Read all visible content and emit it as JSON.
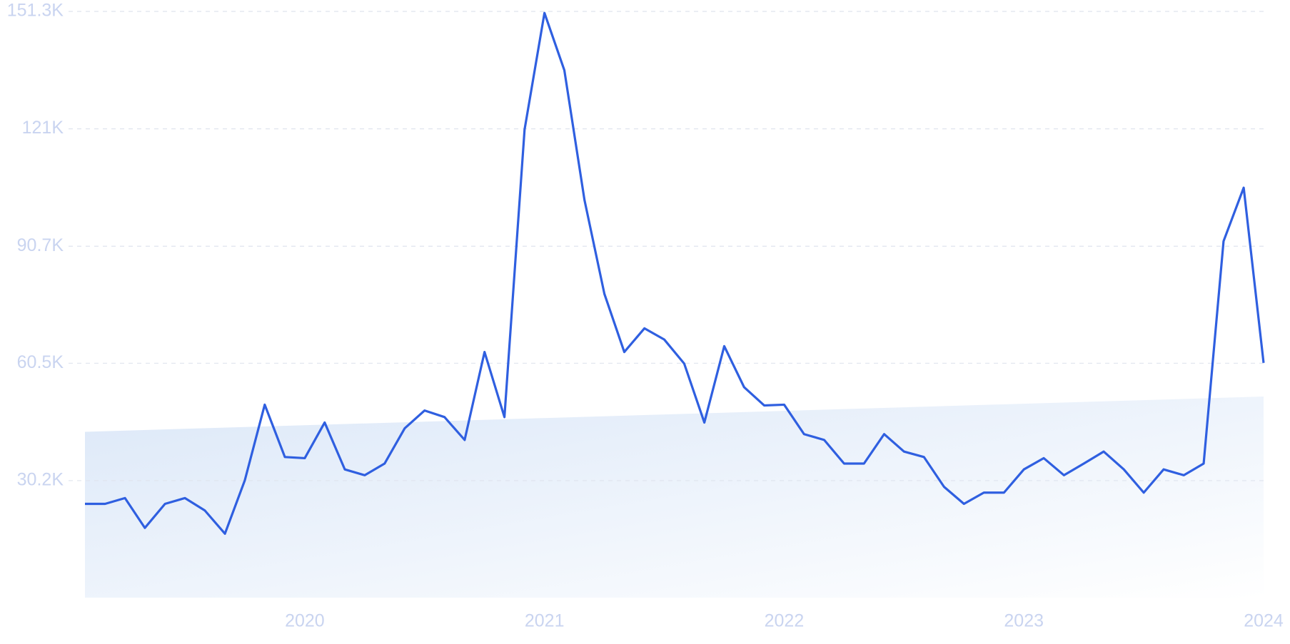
{
  "chart_data": {
    "type": "line",
    "x": [
      2019.083,
      2019.167,
      2019.25,
      2019.333,
      2019.417,
      2019.5,
      2019.583,
      2019.667,
      2019.75,
      2019.833,
      2019.917,
      2020,
      2020.083,
      2020.167,
      2020.25,
      2020.333,
      2020.417,
      2020.5,
      2020.583,
      2020.667,
      2020.75,
      2020.833,
      2020.917,
      2021,
      2021.083,
      2021.167,
      2021.25,
      2021.333,
      2021.417,
      2021.5,
      2021.583,
      2021.667,
      2021.75,
      2021.833,
      2021.917,
      2022,
      2022.083,
      2022.167,
      2022.25,
      2022.333,
      2022.417,
      2022.5,
      2022.583,
      2022.667,
      2022.75,
      2022.833,
      2022.917,
      2023,
      2023.083,
      2023.167,
      2023.25,
      2023.333,
      2023.417,
      2023.5,
      2023.583,
      2023.667,
      2023.75,
      2023.833,
      2023.917,
      2024
    ],
    "series": [
      {
        "color": "#2f5fe0",
        "values": [
          24200,
          24200,
          25700,
          18000,
          24200,
          25700,
          22500,
          16500,
          30300,
          49800,
          36300,
          36000,
          45200,
          33100,
          31600,
          34600,
          43700,
          48300,
          46600,
          40700,
          63400,
          46600,
          120800,
          150900,
          136100,
          102600,
          78400,
          63400,
          69500,
          66600,
          60400,
          45200,
          64900,
          54300,
          49600,
          49800,
          42200,
          40700,
          34600,
          34600,
          42200,
          37700,
          36300,
          28600,
          24200,
          27100,
          27100,
          33100,
          36000,
          31600,
          34600,
          37700,
          33100,
          27100,
          33100,
          31600,
          34600,
          92000,
          105800,
          60600
        ]
      }
    ],
    "trend": {
      "color": "#dce8f8",
      "values": [
        42800,
        51900
      ]
    },
    "xlim": [
      2019.083,
      2024
    ],
    "xticks": [
      2020,
      2021,
      2022,
      2023,
      2024
    ],
    "ylim": [
      0,
      151300
    ],
    "yticks": [
      {
        "value": 30200,
        "label": "30.2K"
      },
      {
        "value": 60500,
        "label": "60.5K"
      },
      {
        "value": 90700,
        "label": "90.7K"
      },
      {
        "value": 121000,
        "label": "121K"
      },
      {
        "value": 151300,
        "label": "151.3K"
      }
    ],
    "grid": true
  }
}
